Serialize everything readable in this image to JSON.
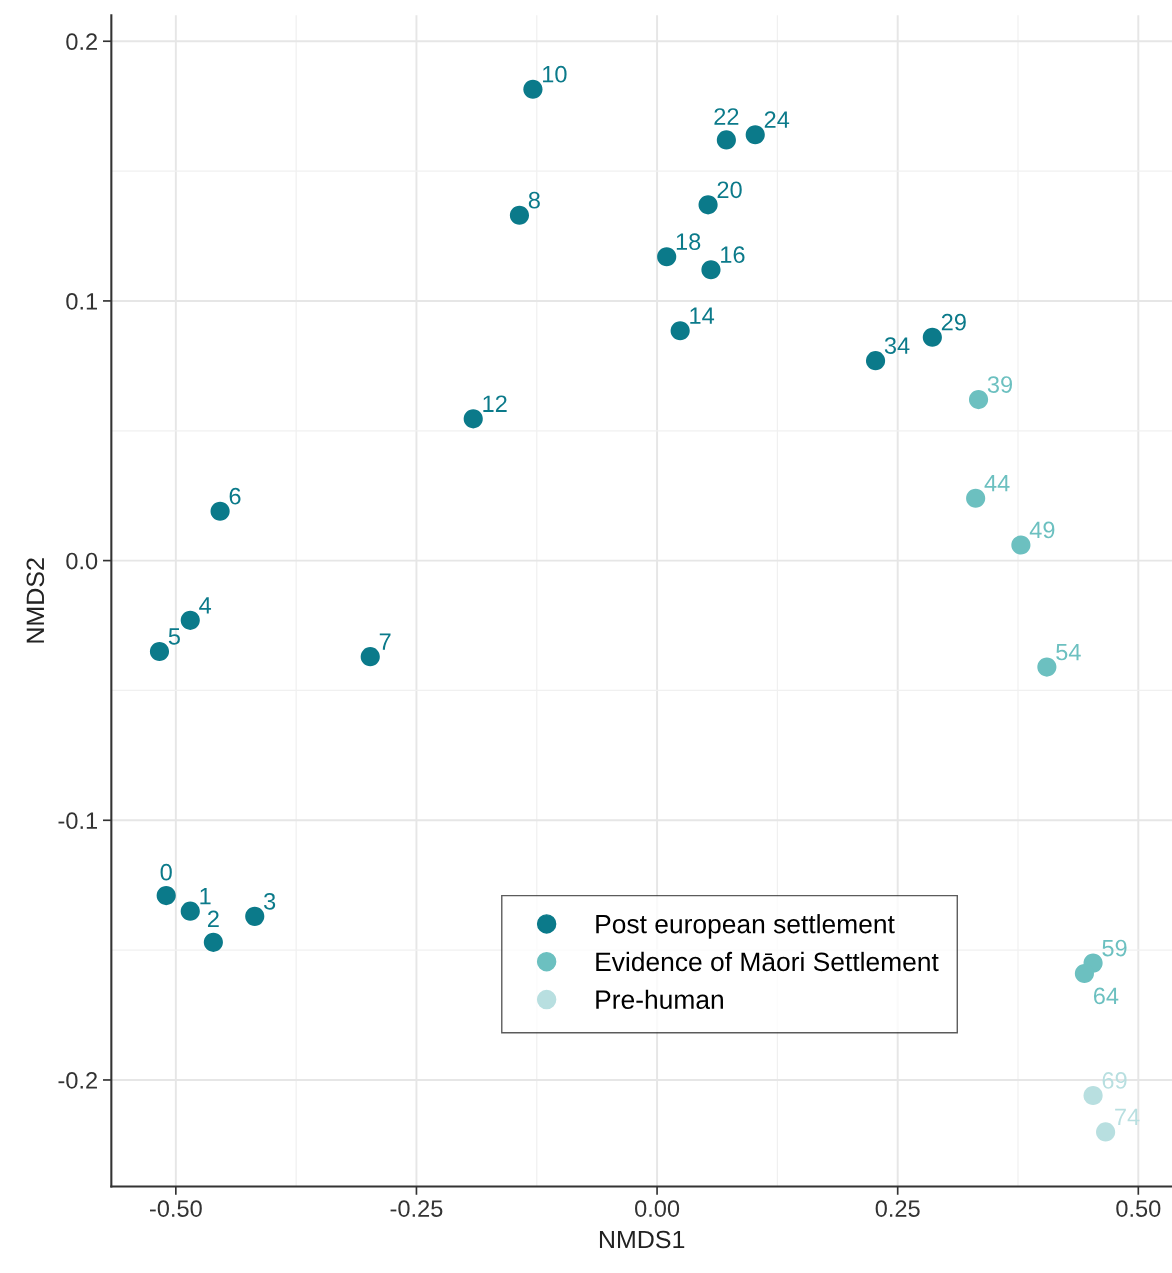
{
  "chart_data": {
    "type": "scatter",
    "xlabel": "NMDS1",
    "ylabel": "NMDS2",
    "xlim": [
      -0.567,
      0.535
    ],
    "ylim": [
      -0.241,
      0.21
    ],
    "xticks": [
      {
        "value": -0.5,
        "label": "-0.50"
      },
      {
        "value": -0.25,
        "label": "-0.25"
      },
      {
        "value": 0,
        "label": "0.00"
      },
      {
        "value": 0.25,
        "label": "0.25"
      },
      {
        "value": 0.5,
        "label": "0.50"
      }
    ],
    "yticks": [
      {
        "value": -0.2,
        "label": "-0.2"
      },
      {
        "value": -0.1,
        "label": "-0.1"
      },
      {
        "value": 0,
        "label": "0.0"
      },
      {
        "value": 0.1,
        "label": "0.1"
      },
      {
        "value": 0.2,
        "label": "0.2"
      }
    ],
    "grid": true,
    "legend": "bottom right",
    "marker": "circle",
    "series": [
      {
        "name": "Post european settlement",
        "color": "#0b7a8a",
        "x": [
          -0.129,
          0.072,
          0.102,
          -0.143,
          0.053,
          0.01,
          0.056,
          0.024,
          0.286,
          0.227,
          -0.191,
          -0.454,
          -0.485,
          -0.517,
          -0.298,
          -0.51,
          -0.485,
          -0.461,
          -0.418
        ],
        "values": [
          0.1815,
          0.162,
          0.164,
          0.133,
          0.137,
          0.117,
          0.112,
          0.0885,
          0.086,
          0.077,
          0.0546,
          0.019,
          -0.023,
          -0.035,
          -0.037,
          -0.129,
          -0.135,
          -0.147,
          -0.137
        ]
      },
      {
        "name": "Evidence of Māori Settlement",
        "color": "#6cc0c0",
        "x": [
          0.334,
          0.331,
          0.378,
          0.405,
          0.453,
          0.444
        ],
        "values": [
          0.062,
          0.024,
          0.006,
          -0.041,
          -0.155,
          -0.159
        ]
      },
      {
        "name": "Pre-human",
        "color": "#b8dfe0",
        "x": [
          0.453,
          0.466
        ],
        "values": [
          -0.206,
          -0.22
        ]
      }
    ],
    "annotations": [
      {
        "text": "10",
        "x": -0.129,
        "y": 0.1815
      },
      {
        "text": "22",
        "x": 0.072,
        "y": 0.162
      },
      {
        "text": "24",
        "x": 0.102,
        "y": 0.164
      },
      {
        "text": "8",
        "x": -0.143,
        "y": 0.133
      },
      {
        "text": "20",
        "x": 0.053,
        "y": 0.137
      },
      {
        "text": "18",
        "x": 0.01,
        "y": 0.117
      },
      {
        "text": "16",
        "x": 0.056,
        "y": 0.112
      },
      {
        "text": "14",
        "x": 0.024,
        "y": 0.0885
      },
      {
        "text": "29",
        "x": 0.286,
        "y": 0.086
      },
      {
        "text": "34",
        "x": 0.227,
        "y": 0.077
      },
      {
        "text": "12",
        "x": -0.191,
        "y": 0.0546
      },
      {
        "text": "6",
        "x": -0.454,
        "y": 0.019
      },
      {
        "text": "4",
        "x": -0.485,
        "y": -0.023
      },
      {
        "text": "5",
        "x": -0.517,
        "y": -0.035
      },
      {
        "text": "7",
        "x": -0.298,
        "y": -0.037
      },
      {
        "text": "0",
        "x": -0.51,
        "y": -0.129
      },
      {
        "text": "1",
        "x": -0.485,
        "y": -0.135
      },
      {
        "text": "2",
        "x": -0.461,
        "y": -0.147
      },
      {
        "text": "3",
        "x": -0.418,
        "y": -0.137
      },
      {
        "text": "39",
        "x": 0.334,
        "y": 0.062
      },
      {
        "text": "44",
        "x": 0.331,
        "y": 0.024
      },
      {
        "text": "49",
        "x": 0.378,
        "y": 0.006
      },
      {
        "text": "54",
        "x": 0.405,
        "y": -0.041
      },
      {
        "text": "59",
        "x": 0.453,
        "y": -0.155
      },
      {
        "text": "64",
        "x": 0.444,
        "y": -0.159
      },
      {
        "text": "69",
        "x": 0.453,
        "y": -0.206
      },
      {
        "text": "74",
        "x": 0.466,
        "y": -0.22
      }
    ]
  }
}
